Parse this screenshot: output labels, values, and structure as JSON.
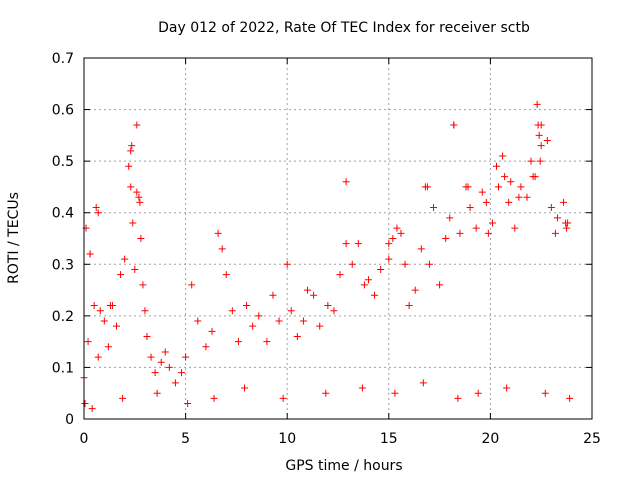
{
  "chart_data": {
    "type": "scatter",
    "title": "Day 012 of 2022, Rate Of TEC Index for receiver sctb",
    "xlabel": "GPS time / hours",
    "ylabel": "ROTI / TECUs",
    "xlim": [
      0,
      25
    ],
    "ylim": [
      0,
      0.7
    ],
    "x_ticks": [
      0,
      5,
      10,
      15,
      20,
      25
    ],
    "y_ticks": [
      0,
      0.1,
      0.2,
      0.3,
      0.4,
      0.5,
      0.6,
      0.7
    ],
    "grid": true,
    "marker": "+",
    "series": [
      {
        "color": "#ff0000",
        "x": [
          0.0,
          0.1,
          0.2,
          0.3,
          0.5,
          0.6,
          0.7,
          0.8,
          1.0,
          1.2,
          1.4,
          1.6,
          1.8,
          2.0,
          2.2,
          2.3,
          2.4,
          2.5,
          2.6,
          2.7,
          2.8,
          2.9,
          3.0,
          3.1,
          3.3,
          3.5,
          3.8,
          4.0,
          4.2,
          4.5,
          4.8,
          5.0,
          5.3,
          5.6,
          6.0,
          6.3,
          6.6,
          6.8,
          7.0,
          7.3,
          7.6,
          8.0,
          8.3,
          8.6,
          9.0,
          9.3,
          9.6,
          10.0,
          10.2,
          10.5,
          10.8,
          11.0,
          11.3,
          11.6,
          12.0,
          12.3,
          12.6,
          12.9,
          13.2,
          13.5,
          13.8,
          14.0,
          14.3,
          14.6,
          15.0,
          15.2,
          15.4,
          15.6,
          15.8,
          16.0,
          16.3,
          16.6,
          16.9,
          17.2,
          17.5,
          17.8,
          18.0,
          18.2,
          18.5,
          18.8,
          19.0,
          19.3,
          19.6,
          19.9,
          20.1,
          20.4,
          20.6,
          20.9,
          21.2,
          21.5,
          21.8,
          22.0,
          22.2,
          22.3,
          22.5,
          22.8,
          23.0,
          23.3,
          23.6,
          23.8,
          0.3,
          0.7,
          1.3,
          2.3,
          2.35,
          2.6,
          2.75,
          12.9,
          18.2,
          18.9,
          19.8,
          20.3,
          20.7,
          21.0,
          21.4,
          22.1,
          22.35,
          22.4,
          22.45,
          22.5,
          23.2,
          23.7,
          23.75,
          16.8,
          17.0,
          15.0,
          0.05,
          0.4,
          1.9,
          3.6,
          5.1,
          6.4,
          7.9,
          9.8,
          11.9,
          13.7,
          15.3,
          16.7,
          18.4,
          19.4,
          20.8,
          22.7,
          23.9
        ],
        "y": [
          0.08,
          0.37,
          0.15,
          0.32,
          0.22,
          0.41,
          0.12,
          0.21,
          0.19,
          0.14,
          0.22,
          0.18,
          0.28,
          0.31,
          0.49,
          0.52,
          0.38,
          0.29,
          0.57,
          0.43,
          0.35,
          0.26,
          0.21,
          0.16,
          0.12,
          0.09,
          0.11,
          0.13,
          0.1,
          0.07,
          0.09,
          0.12,
          0.26,
          0.19,
          0.14,
          0.17,
          0.36,
          0.33,
          0.28,
          0.21,
          0.15,
          0.22,
          0.18,
          0.2,
          0.15,
          0.24,
          0.19,
          0.3,
          0.21,
          0.16,
          0.19,
          0.25,
          0.24,
          0.18,
          0.22,
          0.21,
          0.28,
          0.46,
          0.3,
          0.34,
          0.26,
          0.27,
          0.24,
          0.29,
          0.31,
          0.35,
          0.37,
          0.36,
          0.3,
          0.22,
          0.25,
          0.33,
          0.45,
          0.41,
          0.26,
          0.35,
          0.39,
          0.57,
          0.36,
          0.45,
          0.41,
          0.37,
          0.44,
          0.36,
          0.38,
          0.45,
          0.51,
          0.42,
          0.37,
          0.45,
          0.43,
          0.5,
          0.47,
          0.61,
          0.57,
          0.54,
          0.41,
          0.39,
          0.42,
          0.38,
          0.32,
          0.4,
          0.22,
          0.45,
          0.53,
          0.44,
          0.42,
          0.34,
          0.57,
          0.45,
          0.42,
          0.49,
          0.47,
          0.46,
          0.43,
          0.47,
          0.57,
          0.55,
          0.5,
          0.53,
          0.36,
          0.38,
          0.37,
          0.45,
          0.3,
          0.34,
          0.03,
          0.02,
          0.04,
          0.05,
          0.03,
          0.04,
          0.06,
          0.04,
          0.05,
          0.06,
          0.05,
          0.07,
          0.04,
          0.05,
          0.06,
          0.05,
          0.04
        ]
      }
    ]
  }
}
